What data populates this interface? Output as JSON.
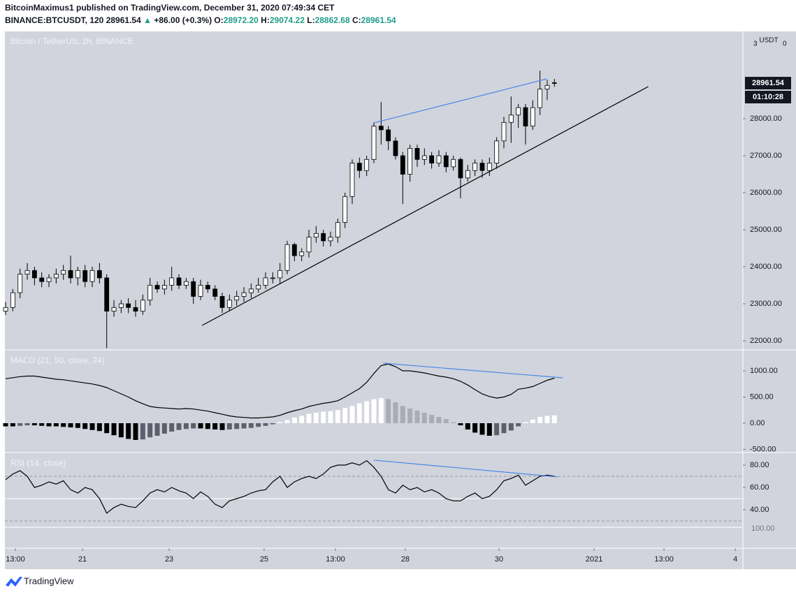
{
  "header": {
    "author_line": "BitcoinMaximus1 published on TradingView.com, December 31, 2020 07:49:34 CET",
    "symbol": "BINANCE:BTCUSDT, 120",
    "price": "28961.54",
    "arrow": "▲",
    "change": "+86.00 (+0.3%)",
    "o_label": "O:",
    "o": "28972.20",
    "h_label": "H:",
    "h": "29074.22",
    "l_label": "L:",
    "l": "28862.68",
    "c_label": "C:",
    "c": "28961.54",
    "value_color": "#1f9e89"
  },
  "footer": {
    "brand": "TradingView"
  },
  "chart_data": [
    {
      "type": "candlestick",
      "title": "Bitcoin / TetherUS, 2h, BINANCE",
      "axis_unit": "USDT",
      "clipped_labels": [
        "3",
        "0"
      ],
      "up_color": "#ffffff",
      "down_color": "#000000",
      "x": [
        0,
        4,
        8,
        12,
        16,
        20,
        24,
        28,
        32,
        36,
        40,
        44,
        48,
        52,
        56,
        60,
        64,
        68,
        72,
        76,
        80,
        84,
        88,
        92,
        96,
        100,
        104,
        108,
        112,
        116,
        120,
        124,
        128,
        132,
        136,
        140,
        144,
        148,
        152,
        156,
        160,
        164,
        168,
        172,
        176,
        180,
        184,
        188,
        192,
        196,
        200,
        204,
        208,
        212,
        216,
        220,
        224,
        228,
        232,
        236,
        240,
        244,
        248,
        252,
        256,
        260,
        264,
        268,
        272,
        276,
        280,
        284,
        288,
        292,
        296,
        300,
        304
      ],
      "open": [
        22800,
        22900,
        23300,
        23800,
        23900,
        23700,
        23600,
        23700,
        23800,
        23900,
        23700,
        23900,
        23600,
        23900,
        23700,
        22800,
        22900,
        23000,
        22900,
        22800,
        23100,
        23500,
        23400,
        23500,
        23700,
        23500,
        23600,
        23200,
        23500,
        23400,
        23200,
        22900,
        23100,
        23200,
        23300,
        23400,
        23500,
        23700,
        23700,
        23900,
        24600,
        24300,
        24400,
        24800,
        24900,
        24700,
        24800,
        25200,
        25900,
        26800,
        26600,
        26900,
        27800,
        27700,
        27400,
        27000,
        26500,
        27200,
        26900,
        27000,
        26800,
        27000,
        26700,
        26900,
        26400,
        26600,
        26800,
        26600,
        26800,
        27400,
        27900,
        28100,
        28300,
        27800,
        28300,
        28800,
        28972.2
      ],
      "high": [
        23050,
        23400,
        23950,
        24100,
        24000,
        23850,
        23800,
        23950,
        24050,
        24300,
        24000,
        24050,
        24000,
        24100,
        23800,
        23100,
        23100,
        23150,
        23100,
        23250,
        23700,
        23600,
        23650,
        24000,
        23800,
        23700,
        23700,
        23650,
        23600,
        23500,
        23300,
        23250,
        23350,
        23450,
        23550,
        23700,
        23850,
        23850,
        24100,
        24700,
        24650,
        24500,
        25000,
        25100,
        25000,
        24950,
        25300,
        26000,
        26900,
        26950,
        27000,
        27900,
        28450,
        27800,
        27500,
        27100,
        27300,
        27300,
        27200,
        27100,
        27150,
        27100,
        27000,
        26950,
        26750,
        26900,
        26900,
        26950,
        27500,
        28050,
        28600,
        28400,
        28400,
        28500,
        29300,
        29050,
        29074.22
      ],
      "low": [
        22700,
        22800,
        23150,
        23650,
        23500,
        23450,
        23450,
        23550,
        23650,
        23550,
        23500,
        23450,
        23450,
        23550,
        21800,
        22650,
        22750,
        22750,
        22650,
        22700,
        22950,
        23300,
        23250,
        23350,
        23400,
        23400,
        23000,
        23100,
        23300,
        23100,
        22750,
        22800,
        22950,
        23050,
        23150,
        23300,
        23400,
        23550,
        23550,
        23800,
        24150,
        24150,
        24250,
        24650,
        24550,
        24550,
        24650,
        25050,
        25700,
        26400,
        26450,
        26800,
        27300,
        27150,
        26900,
        25700,
        26300,
        26700,
        26750,
        26650,
        26700,
        26550,
        26600,
        25850,
        26300,
        26450,
        26400,
        26450,
        26650,
        27200,
        27350,
        27750,
        27300,
        27700,
        28100,
        28500,
        28862.68
      ],
      "close": [
        22900,
        23300,
        23800,
        23900,
        23700,
        23600,
        23700,
        23800,
        23900,
        23700,
        23900,
        23600,
        23900,
        23700,
        22800,
        22900,
        23000,
        22900,
        22800,
        23100,
        23500,
        23400,
        23500,
        23700,
        23500,
        23600,
        23200,
        23500,
        23400,
        23200,
        22900,
        23100,
        23200,
        23300,
        23400,
        23500,
        23700,
        23700,
        23900,
        24600,
        24300,
        24400,
        24800,
        24900,
        24700,
        24800,
        25200,
        25900,
        26800,
        26600,
        26900,
        27800,
        27700,
        27400,
        27000,
        26500,
        27200,
        26900,
        27000,
        26800,
        27000,
        26700,
        26900,
        26400,
        26600,
        26800,
        26600,
        26800,
        27400,
        27900,
        28100,
        28300,
        27800,
        28300,
        28800,
        28900,
        28961.54
      ],
      "xlim": [
        -0.4,
        408.4
      ],
      "xticks": [
        {
          "value": 5.4,
          "label": "13:00"
        },
        {
          "value": 42.6,
          "label": "21"
        },
        {
          "value": 90.6,
          "label": "23"
        },
        {
          "value": 143.2,
          "label": "25"
        },
        {
          "value": 182.7,
          "label": "13:00"
        },
        {
          "value": 221.4,
          "label": "28"
        },
        {
          "value": 273.3,
          "label": "30"
        },
        {
          "value": 326,
          "label": "2021"
        },
        {
          "value": 364.7,
          "label": "13:00"
        },
        {
          "value": 404.2,
          "label": "4"
        }
      ],
      "ylim": [
        21774,
        30358
      ],
      "yticks": [
        {
          "value": 22000,
          "label": "22000.00"
        },
        {
          "value": 23000,
          "label": "23000.00"
        },
        {
          "value": 24000,
          "label": "24000.00"
        },
        {
          "value": 25000,
          "label": "25000.00"
        },
        {
          "value": 26000,
          "label": "26000.00"
        },
        {
          "value": 27000,
          "label": "27000.00"
        },
        {
          "value": 28000,
          "label": "28000.00"
        }
      ],
      "last_price": 28961.54,
      "countdown": "01:10:28",
      "trendlines": [
        {
          "x": [
            108.8,
            356
          ],
          "y": [
            22415,
            28868
          ],
          "color": "#000000"
        },
        {
          "x": [
            204,
            299.7
          ],
          "y": [
            27887,
            29075
          ],
          "color": "#4a86e8"
        }
      ]
    },
    {
      "type": "macd",
      "title": "MACD (21, 50, close, 24)",
      "line_color": "#000000",
      "histogram_colors": [
        "#ffffff",
        "#a9acb5",
        "#000000",
        "#5d606b"
      ],
      "macd": [
        850,
        870,
        890,
        900,
        900,
        880,
        860,
        840,
        830,
        810,
        790,
        770,
        750,
        720,
        680,
        620,
        560,
        500,
        430,
        370,
        320,
        300,
        290,
        280,
        270,
        280,
        270,
        250,
        230,
        200,
        170,
        140,
        120,
        110,
        100,
        100,
        110,
        120,
        150,
        200,
        240,
        270,
        320,
        350,
        380,
        400,
        430,
        500,
        580,
        660,
        780,
        950,
        1100,
        1130,
        1080,
        1000,
        1000,
        980,
        960,
        930,
        900,
        880,
        850,
        800,
        730,
        640,
        560,
        510,
        480,
        500,
        550,
        650,
        670,
        700,
        760,
        820,
        860
      ],
      "histogram": [
        -60,
        -60,
        -50,
        -40,
        -40,
        -50,
        -60,
        -60,
        -70,
        -80,
        -90,
        -110,
        -130,
        -150,
        -190,
        -230,
        -270,
        -300,
        -320,
        -310,
        -270,
        -240,
        -200,
        -160,
        -130,
        -110,
        -100,
        -100,
        -110,
        -120,
        -130,
        -120,
        -110,
        -100,
        -90,
        -70,
        -50,
        -20,
        20,
        60,
        110,
        140,
        180,
        200,
        220,
        230,
        250,
        290,
        330,
        380,
        420,
        460,
        480,
        460,
        400,
        330,
        280,
        240,
        200,
        160,
        120,
        80,
        20,
        -40,
        -120,
        -180,
        -220,
        -240,
        -230,
        -190,
        -140,
        -60,
        20,
        70,
        120,
        140,
        150
      ],
      "ylim": [
        -547,
        1387
      ],
      "yticks": [
        {
          "value": -500,
          "label": "-500.00"
        },
        {
          "value": 0,
          "label": "0.00"
        },
        {
          "value": 500,
          "label": "500.00"
        },
        {
          "value": 1000,
          "label": "1000.00"
        }
      ],
      "trendlines": [
        {
          "x": [
            209,
            308.6
          ],
          "y": [
            1147,
            867
          ],
          "color": "#4a86e8"
        }
      ]
    },
    {
      "type": "line",
      "title": "RSI (14, close)",
      "line_color": "#000000",
      "extra_label": "100.00",
      "values": [
        67,
        72,
        75,
        70,
        60,
        62,
        65,
        63,
        66,
        58,
        55,
        60,
        58,
        50,
        37,
        42,
        45,
        43,
        42,
        48,
        55,
        58,
        56,
        60,
        57,
        55,
        50,
        56,
        52,
        45,
        42,
        48,
        50,
        52,
        55,
        57,
        58,
        65,
        70,
        60,
        65,
        68,
        70,
        68,
        72,
        78,
        80,
        80,
        82,
        80,
        84,
        78,
        70,
        58,
        55,
        62,
        58,
        60,
        56,
        58,
        55,
        50,
        48,
        48,
        52,
        55,
        50,
        52,
        58,
        66,
        68,
        71,
        62,
        66,
        70,
        71,
        70
      ],
      "ylim": [
        5.6,
        90.6
      ],
      "yticks": [
        {
          "value": 40,
          "label": "40.00"
        },
        {
          "value": 60,
          "label": "60.00"
        },
        {
          "value": 80,
          "label": "80.00"
        }
      ],
      "bands": [
        70,
        30
      ],
      "midline": 50,
      "trendlines": [
        {
          "x": [
            204,
            305.8
          ],
          "y": [
            84.4,
            69.4
          ],
          "color": "#4a86e8"
        }
      ]
    }
  ]
}
